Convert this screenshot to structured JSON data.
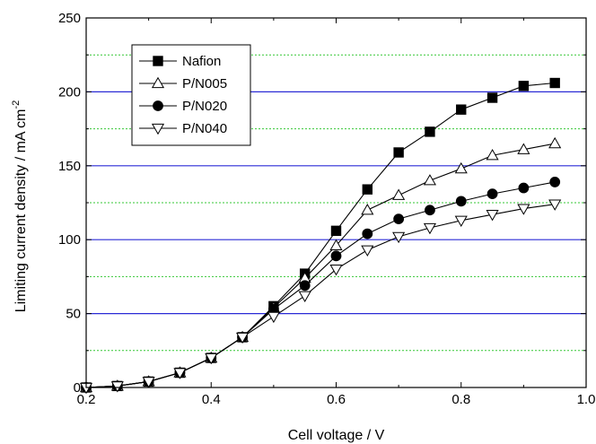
{
  "chart_data": {
    "type": "line",
    "title": "",
    "xlabel": "Cell voltage / V",
    "ylabel_main": "Limiting current density / mA cm",
    "ylabel_sup": "-2",
    "xlim": [
      0.2,
      1.0
    ],
    "ylim": [
      0,
      250
    ],
    "x_ticks": [
      0.2,
      0.4,
      0.6,
      0.8,
      1.0
    ],
    "x_tick_labels": [
      "0.2",
      "0.4",
      "0.6",
      "0.8",
      "1.0"
    ],
    "y_ticks": [
      0,
      50,
      100,
      150,
      200,
      250
    ],
    "y_tick_labels": [
      "0",
      "50",
      "100",
      "150",
      "200",
      "250"
    ],
    "grid": {
      "major_y": [
        50,
        100,
        150,
        200
      ],
      "major_color": "#2b2bd6",
      "minor_y": [
        25,
        75,
        125,
        175,
        225
      ],
      "minor_color": "#35c735",
      "minor_style": "dotted"
    },
    "legend_position": "top-left",
    "x": [
      0.2,
      0.25,
      0.3,
      0.35,
      0.4,
      0.45,
      0.5,
      0.55,
      0.6,
      0.65,
      0.7,
      0.75,
      0.8,
      0.85,
      0.9,
      0.95
    ],
    "series": [
      {
        "name": "Nafion",
        "marker": "square-filled",
        "values": [
          0,
          1,
          4,
          10,
          20,
          34,
          55,
          77,
          106,
          134,
          159,
          173,
          188,
          196,
          204,
          206
        ]
      },
      {
        "name": "P/N005",
        "marker": "triangle-up-open",
        "values": [
          0,
          1,
          4,
          10,
          20,
          34,
          54,
          74,
          96,
          120,
          130,
          140,
          148,
          157,
          161,
          165
        ]
      },
      {
        "name": "P/N020",
        "marker": "circle-filled",
        "values": [
          0,
          1,
          4,
          10,
          20,
          34,
          53,
          69,
          89,
          104,
          114,
          120,
          126,
          131,
          135,
          139
        ]
      },
      {
        "name": "P/N040",
        "marker": "triangle-down-open",
        "values": [
          0,
          1,
          4,
          10,
          20,
          34,
          48,
          62,
          80,
          93,
          102,
          108,
          113,
          117,
          121,
          124
        ]
      }
    ]
  }
}
